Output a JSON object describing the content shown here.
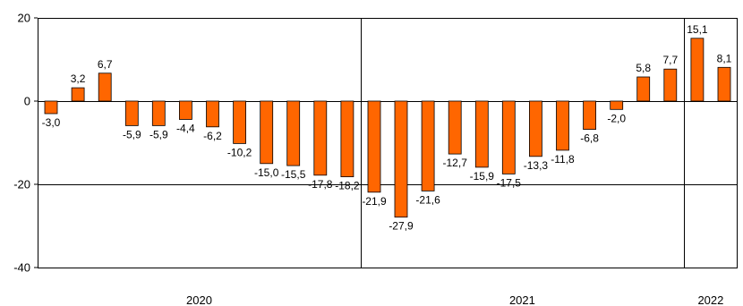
{
  "chart_data": {
    "type": "bar",
    "title": "",
    "xlabel": "",
    "ylabel": "",
    "ylim": [
      -40,
      20
    ],
    "yticks": [
      "20",
      "0",
      "-20",
      "-40"
    ],
    "grid": true,
    "legend": "none",
    "bar_color": "#FF6600",
    "year_labels": [
      "2020",
      "2021",
      "2022"
    ],
    "year_groups": [
      {
        "label": "2020",
        "start": 0,
        "end": 11
      },
      {
        "label": "2021",
        "start": 12,
        "end": 23
      },
      {
        "label": "2022",
        "start": 24,
        "end": 25
      }
    ],
    "values": [
      -3.0,
      3.2,
      6.7,
      -5.9,
      -5.9,
      -4.4,
      -6.2,
      -10.2,
      -15.0,
      -15.5,
      -17.8,
      -18.2,
      -21.9,
      -27.9,
      -21.6,
      -12.7,
      -15.9,
      -17.5,
      -13.3,
      -11.8,
      -6.8,
      -2.0,
      5.8,
      7.7,
      15.1,
      8.1
    ],
    "data_labels": [
      "-3,0",
      "3,2",
      "6,7",
      "-5,9",
      "-5,9",
      "-4,4",
      "-6,2",
      "-10,2",
      "-15,0",
      "-15,5",
      "-17,8",
      "-18,2",
      "-21,9",
      "-27,9",
      "-21,6",
      "-12,7",
      "-15,9",
      "-17,5",
      "-13,3",
      "-11,8",
      "-6,8",
      "-2,0",
      "5,8",
      "7,7",
      "15,1",
      "8,1"
    ]
  }
}
